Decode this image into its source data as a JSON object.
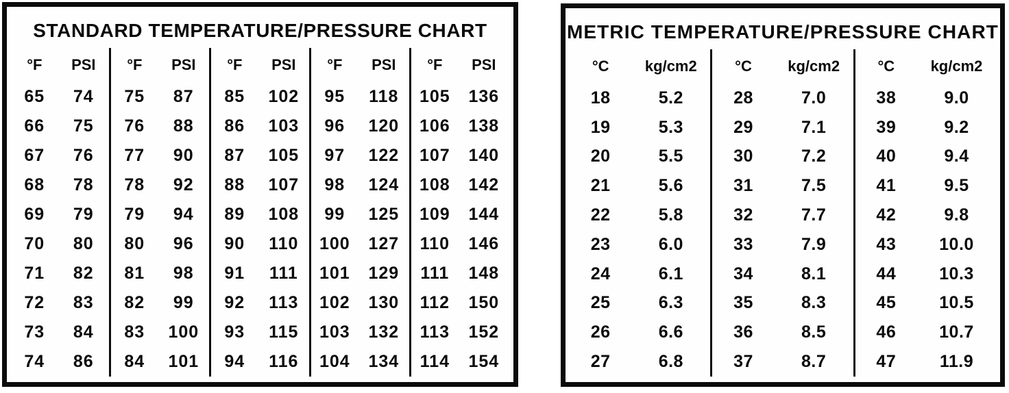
{
  "page": {
    "background": "#ffffff",
    "ink": "#0a0a0a",
    "border_color": "#0b0b0b"
  },
  "standard_chart": {
    "title": "STANDARD TEMPERATURE/PRESSURE CHART",
    "column_headers": {
      "temp": "°F",
      "pressure": "PSI"
    },
    "groups": [
      {
        "rows": [
          [
            "65",
            "74"
          ],
          [
            "66",
            "75"
          ],
          [
            "67",
            "76"
          ],
          [
            "68",
            "78"
          ],
          [
            "69",
            "79"
          ],
          [
            "70",
            "80"
          ],
          [
            "71",
            "82"
          ],
          [
            "72",
            "83"
          ],
          [
            "73",
            "84"
          ],
          [
            "74",
            "86"
          ]
        ]
      },
      {
        "rows": [
          [
            "75",
            "87"
          ],
          [
            "76",
            "88"
          ],
          [
            "77",
            "90"
          ],
          [
            "78",
            "92"
          ],
          [
            "79",
            "94"
          ],
          [
            "80",
            "96"
          ],
          [
            "81",
            "98"
          ],
          [
            "82",
            "99"
          ],
          [
            "83",
            "100"
          ],
          [
            "84",
            "101"
          ]
        ]
      },
      {
        "rows": [
          [
            "85",
            "102"
          ],
          [
            "86",
            "103"
          ],
          [
            "87",
            "105"
          ],
          [
            "88",
            "107"
          ],
          [
            "89",
            "108"
          ],
          [
            "90",
            "110"
          ],
          [
            "91",
            "111"
          ],
          [
            "92",
            "113"
          ],
          [
            "93",
            "115"
          ],
          [
            "94",
            "116"
          ]
        ]
      },
      {
        "rows": [
          [
            "95",
            "118"
          ],
          [
            "96",
            "120"
          ],
          [
            "97",
            "122"
          ],
          [
            "98",
            "124"
          ],
          [
            "99",
            "125"
          ],
          [
            "100",
            "127"
          ],
          [
            "101",
            "129"
          ],
          [
            "102",
            "130"
          ],
          [
            "103",
            "132"
          ],
          [
            "104",
            "134"
          ]
        ]
      },
      {
        "rows": [
          [
            "105",
            "136"
          ],
          [
            "106",
            "138"
          ],
          [
            "107",
            "140"
          ],
          [
            "108",
            "142"
          ],
          [
            "109",
            "144"
          ],
          [
            "110",
            "146"
          ],
          [
            "111",
            "148"
          ],
          [
            "112",
            "150"
          ],
          [
            "113",
            "152"
          ],
          [
            "114",
            "154"
          ]
        ]
      }
    ]
  },
  "metric_chart": {
    "title": "METRIC TEMPERATURE/PRESSURE CHART",
    "column_headers": {
      "temp": "°C",
      "pressure": "kg/cm2"
    },
    "groups": [
      {
        "rows": [
          [
            "18",
            "5.2"
          ],
          [
            "19",
            "5.3"
          ],
          [
            "20",
            "5.5"
          ],
          [
            "21",
            "5.6"
          ],
          [
            "22",
            "5.8"
          ],
          [
            "23",
            "6.0"
          ],
          [
            "24",
            "6.1"
          ],
          [
            "25",
            "6.3"
          ],
          [
            "26",
            "6.6"
          ],
          [
            "27",
            "6.8"
          ]
        ]
      },
      {
        "rows": [
          [
            "28",
            "7.0"
          ],
          [
            "29",
            "7.1"
          ],
          [
            "30",
            "7.2"
          ],
          [
            "31",
            "7.5"
          ],
          [
            "32",
            "7.7"
          ],
          [
            "33",
            "7.9"
          ],
          [
            "34",
            "8.1"
          ],
          [
            "35",
            "8.3"
          ],
          [
            "36",
            "8.5"
          ],
          [
            "37",
            "8.7"
          ]
        ]
      },
      {
        "rows": [
          [
            "38",
            "9.0"
          ],
          [
            "39",
            "9.2"
          ],
          [
            "40",
            "9.4"
          ],
          [
            "41",
            "9.5"
          ],
          [
            "42",
            "9.8"
          ],
          [
            "43",
            "10.0"
          ],
          [
            "44",
            "10.3"
          ],
          [
            "45",
            "10.5"
          ],
          [
            "46",
            "10.7"
          ],
          [
            "47",
            "11.9"
          ]
        ]
      }
    ]
  }
}
